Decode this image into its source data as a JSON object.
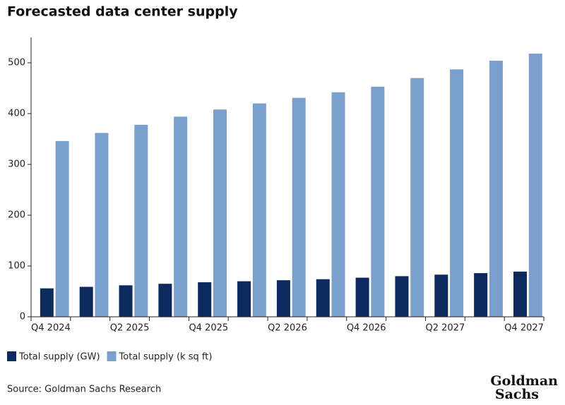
{
  "chart_data": {
    "type": "bar",
    "title": "Forecasted data center supply",
    "categories": [
      "Q4 2024",
      null,
      "Q2 2025",
      null,
      "Q4 2025",
      null,
      "Q2 2026",
      null,
      "Q4 2026",
      null,
      "Q2 2027",
      null,
      "Q4 2027"
    ],
    "series": [
      {
        "name": "Total supply (GW)",
        "color": "#0d2a5e",
        "values": [
          56,
          59,
          62,
          65,
          68,
          70,
          72,
          74,
          77,
          80,
          83,
          86,
          89
        ]
      },
      {
        "name": "Total supply (k sq ft)",
        "color": "#7a9fcc",
        "values": [
          346,
          362,
          378,
          394,
          408,
          420,
          431,
          442,
          453,
          470,
          487,
          504,
          518
        ]
      }
    ],
    "ylim": [
      0,
      550
    ],
    "yticks": [
      0,
      100,
      200,
      300,
      400,
      500
    ],
    "grid": false,
    "source": "Source: Goldman Sachs Research",
    "logo": [
      "Goldman",
      "Sachs"
    ]
  }
}
